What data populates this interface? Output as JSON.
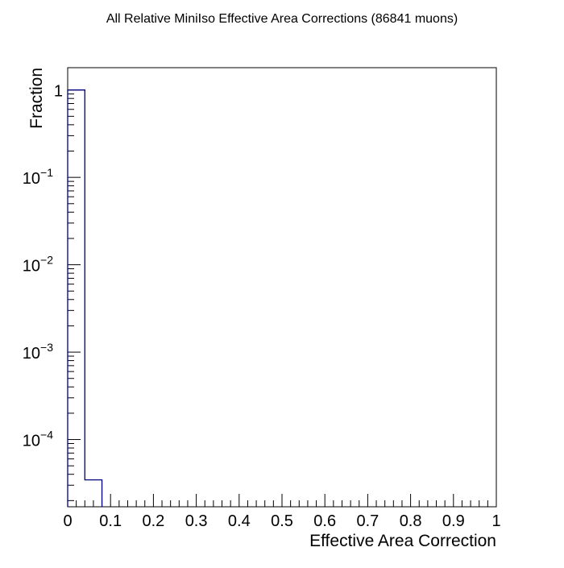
{
  "chart_data": {
    "type": "bar",
    "title": "All Relative MiniIso Effective Area Corrections (86841 muons)",
    "xlabel": "Effective Area Correction",
    "ylabel": "Fraction",
    "xlim": [
      0,
      1
    ],
    "ylim": [
      1.7e-05,
      1.8
    ],
    "yscale": "log",
    "grid": false,
    "bin_width": 0.04,
    "bin_edges": [
      0,
      0.04,
      0.08
    ],
    "values": [
      0.99997,
      3.45e-05
    ],
    "x_ticks": [
      {
        "value": 0,
        "label": "0"
      },
      {
        "value": 0.1,
        "label": "0.1"
      },
      {
        "value": 0.2,
        "label": "0.2"
      },
      {
        "value": 0.3,
        "label": "0.3"
      },
      {
        "value": 0.4,
        "label": "0.4"
      },
      {
        "value": 0.5,
        "label": "0.5"
      },
      {
        "value": 0.6,
        "label": "0.6"
      },
      {
        "value": 0.7,
        "label": "0.7"
      },
      {
        "value": 0.8,
        "label": "0.8"
      },
      {
        "value": 0.9,
        "label": "0.9"
      },
      {
        "value": 1,
        "label": "1"
      }
    ],
    "y_ticks": [
      {
        "value": 1,
        "base": "1",
        "exp": ""
      },
      {
        "value": 0.1,
        "base": "10",
        "exp": "−1"
      },
      {
        "value": 0.01,
        "base": "10",
        "exp": "−2"
      },
      {
        "value": 0.001,
        "base": "10",
        "exp": "−3"
      },
      {
        "value": 0.0001,
        "base": "10",
        "exp": "−4"
      }
    ],
    "colors": {
      "series": "#00007f",
      "axes": "#000000"
    }
  }
}
